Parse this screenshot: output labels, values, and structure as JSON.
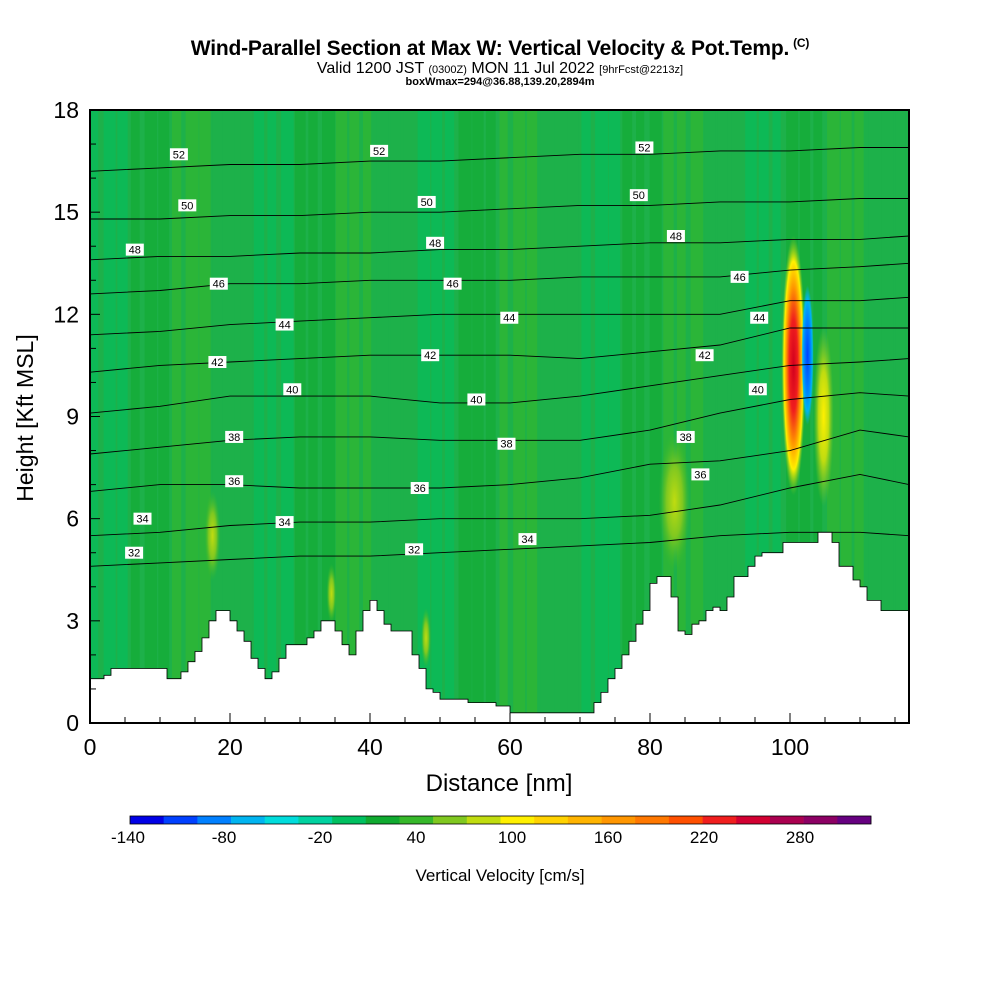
{
  "header": {
    "title": "Wind-Parallel Section at Max W: Vertical Velocity & Pot.Temp.",
    "title_mark": "(C)",
    "valid_a": "Valid 1200 JST",
    "valid_b": "(0300Z)",
    "valid_c": "MON 11 Jul 2022",
    "valid_d": "[9hrFcst@2213z]",
    "sub": "boxWmax=294@36.88,139.20,2894m"
  },
  "chart_data": {
    "type": "heatmap",
    "xlabel": "Distance [nm]",
    "ylabel": "Height [Kft MSL]",
    "xlim": [
      0,
      117
    ],
    "ylim": [
      0,
      18
    ],
    "x_ticks": [
      0,
      20,
      40,
      60,
      80,
      100
    ],
    "y_ticks": [
      0,
      3,
      6,
      9,
      12,
      15,
      18
    ],
    "colorbar": {
      "label": "Vertical Velocity [cm/s]",
      "tick_labels": [
        "-140",
        "-80",
        "-20",
        "40",
        "100",
        "160",
        "220",
        "280"
      ],
      "colors": [
        "#0000e6",
        "#0040ff",
        "#0080ff",
        "#00b4f0",
        "#00dcdc",
        "#00d2a0",
        "#00c060",
        "#10aa30",
        "#36b82a",
        "#80c820",
        "#c0dc10",
        "#fff000",
        "#ffd200",
        "#ffb400",
        "#ff9600",
        "#ff7800",
        "#ff5000",
        "#f01e1e",
        "#d20032",
        "#aa0050",
        "#8c0064",
        "#660080"
      ]
    },
    "theta_contours": [
      {
        "label": "32",
        "h": [
          4.6,
          4.7,
          4.8,
          4.9,
          4.9,
          5.0,
          5.1,
          5.2,
          5.3,
          5.5,
          5.6,
          5.6,
          5.5
        ]
      },
      {
        "label": "34",
        "h": [
          5.5,
          5.6,
          5.8,
          5.9,
          5.9,
          6.0,
          6.0,
          6.0,
          6.1,
          6.4,
          6.9,
          7.3,
          7.0
        ]
      },
      {
        "label": "36",
        "h": [
          6.8,
          7.0,
          7.0,
          6.9,
          6.9,
          6.9,
          7.0,
          7.2,
          7.6,
          7.7,
          8.0,
          8.6,
          8.4
        ]
      },
      {
        "label": "38",
        "h": [
          7.9,
          8.1,
          8.3,
          8.4,
          8.4,
          8.3,
          8.3,
          8.3,
          8.6,
          9.1,
          9.5,
          9.7,
          9.6
        ]
      },
      {
        "label": "40",
        "h": [
          9.1,
          9.3,
          9.6,
          9.6,
          9.6,
          9.4,
          9.4,
          9.6,
          9.9,
          10.2,
          10.5,
          10.6,
          10.7
        ]
      },
      {
        "label": "42",
        "h": [
          10.3,
          10.5,
          10.6,
          10.7,
          10.8,
          10.8,
          10.8,
          10.7,
          10.9,
          11.1,
          11.6,
          11.6,
          11.6
        ]
      },
      {
        "label": "44",
        "h": [
          11.4,
          11.5,
          11.7,
          11.8,
          11.9,
          12.0,
          12.0,
          12.0,
          12.0,
          12.0,
          12.4,
          12.4,
          12.5
        ]
      },
      {
        "label": "46",
        "h": [
          12.6,
          12.7,
          12.9,
          12.9,
          13.0,
          13.0,
          13.0,
          13.1,
          13.1,
          13.1,
          13.3,
          13.4,
          13.5
        ]
      },
      {
        "label": "48",
        "h": [
          13.6,
          13.7,
          13.7,
          13.8,
          13.8,
          13.9,
          13.9,
          14.0,
          14.1,
          14.1,
          14.2,
          14.2,
          14.3
        ]
      },
      {
        "label": "50",
        "h": [
          14.8,
          14.8,
          14.9,
          14.9,
          15.0,
          15.0,
          15.1,
          15.2,
          15.2,
          15.3,
          15.3,
          15.4,
          15.4
        ]
      },
      {
        "label": "52",
        "h": [
          16.2,
          16.3,
          16.4,
          16.4,
          16.5,
          16.5,
          16.6,
          16.7,
          16.7,
          16.8,
          16.8,
          16.9,
          16.9
        ]
      }
    ],
    "theta_contour_x": [
      0,
      10,
      20,
      30,
      40,
      50,
      60,
      70,
      80,
      90,
      100,
      110,
      117
    ],
    "contour_labels": [
      {
        "text": "52",
        "x": 12.7,
        "y": 16.7
      },
      {
        "text": "52",
        "x": 41.3,
        "y": 16.8
      },
      {
        "text": "52",
        "x": 79.2,
        "y": 16.9
      },
      {
        "text": "50",
        "x": 13.9,
        "y": 15.2
      },
      {
        "text": "50",
        "x": 48.1,
        "y": 15.3
      },
      {
        "text": "50",
        "x": 78.4,
        "y": 15.5
      },
      {
        "text": "48",
        "x": 6.4,
        "y": 13.9
      },
      {
        "text": "48",
        "x": 49.3,
        "y": 14.1
      },
      {
        "text": "48",
        "x": 83.7,
        "y": 14.3
      },
      {
        "text": "46",
        "x": 18.4,
        "y": 12.9
      },
      {
        "text": "46",
        "x": 51.8,
        "y": 12.9
      },
      {
        "text": "46",
        "x": 92.8,
        "y": 13.1
      },
      {
        "text": "44",
        "x": 27.8,
        "y": 11.7
      },
      {
        "text": "44",
        "x": 59.9,
        "y": 11.9
      },
      {
        "text": "44",
        "x": 95.6,
        "y": 11.9
      },
      {
        "text": "42",
        "x": 18.2,
        "y": 10.6
      },
      {
        "text": "42",
        "x": 48.6,
        "y": 10.8
      },
      {
        "text": "42",
        "x": 87.8,
        "y": 10.8
      },
      {
        "text": "40",
        "x": 28.9,
        "y": 9.8
      },
      {
        "text": "40",
        "x": 55.2,
        "y": 9.5
      },
      {
        "text": "40",
        "x": 95.4,
        "y": 9.8
      },
      {
        "text": "38",
        "x": 20.6,
        "y": 8.4
      },
      {
        "text": "38",
        "x": 59.5,
        "y": 8.2
      },
      {
        "text": "38",
        "x": 85.1,
        "y": 8.4
      },
      {
        "text": "36",
        "x": 20.6,
        "y": 7.1
      },
      {
        "text": "36",
        "x": 47.1,
        "y": 6.9
      },
      {
        "text": "36",
        "x": 87.2,
        "y": 7.3
      },
      {
        "text": "34",
        "x": 7.5,
        "y": 6.0
      },
      {
        "text": "34",
        "x": 27.8,
        "y": 5.9
      },
      {
        "text": "34",
        "x": 62.5,
        "y": 5.4
      },
      {
        "text": "32",
        "x": 6.3,
        "y": 5.0
      },
      {
        "text": "32",
        "x": 46.3,
        "y": 5.1
      }
    ],
    "terrain": {
      "x": [
        0,
        2,
        3,
        5,
        7,
        9,
        11,
        13,
        14,
        15,
        16,
        17,
        18,
        19,
        20,
        21,
        22,
        23,
        24,
        25,
        26,
        27,
        28,
        29,
        30,
        31,
        32,
        33,
        34,
        35,
        36,
        37,
        38,
        39,
        40,
        41,
        42,
        43,
        44,
        45,
        46,
        47,
        48,
        49,
        50,
        52,
        54,
        56,
        58,
        60,
        62,
        64,
        66,
        68,
        70,
        72,
        73,
        74,
        75,
        76,
        77,
        78,
        79,
        80,
        81,
        82,
        83,
        84,
        85,
        86,
        87,
        88,
        89,
        90,
        91,
        92,
        93,
        94,
        95,
        96,
        97,
        98,
        99,
        100,
        101,
        102,
        103,
        104,
        105,
        106,
        107,
        108,
        109,
        110,
        111,
        112,
        113,
        114,
        115,
        117
      ],
      "h": [
        1.3,
        1.4,
        1.6,
        1.6,
        1.6,
        1.6,
        1.3,
        1.5,
        1.8,
        2.1,
        2.5,
        3.0,
        3.3,
        3.3,
        3.0,
        2.7,
        2.4,
        1.9,
        1.6,
        1.3,
        1.5,
        1.9,
        2.3,
        2.3,
        2.3,
        2.5,
        2.7,
        3.0,
        3.0,
        2.7,
        2.3,
        2.0,
        2.7,
        3.3,
        3.6,
        3.3,
        2.9,
        2.7,
        2.7,
        2.7,
        2.0,
        1.6,
        1.0,
        0.9,
        0.7,
        0.7,
        0.6,
        0.6,
        0.5,
        0.3,
        0.3,
        0.3,
        0.3,
        0.3,
        0.3,
        0.6,
        0.9,
        1.3,
        1.6,
        2.0,
        2.4,
        2.9,
        3.3,
        4.1,
        4.3,
        4.3,
        3.7,
        2.7,
        2.6,
        2.9,
        3.0,
        3.3,
        3.4,
        3.3,
        3.7,
        4.3,
        4.3,
        4.6,
        4.9,
        5.0,
        5.0,
        5.0,
        5.3,
        5.3,
        5.3,
        5.3,
        5.3,
        5.6,
        5.6,
        5.3,
        4.6,
        4.6,
        4.2,
        4.0,
        3.6,
        3.6,
        3.3,
        3.3,
        3.3,
        3.3
      ]
    },
    "updrafts": [
      {
        "x": 100.5,
        "y": 10.5,
        "w": 159,
        "note": "core"
      },
      {
        "x": 102.5,
        "y": 10.8,
        "w": -110,
        "note": "downdraft"
      },
      {
        "x": 104.8,
        "y": 9.0,
        "w": 100
      },
      {
        "x": 83.5,
        "y": 6.5,
        "w": 60
      },
      {
        "x": 17.5,
        "y": 5.5,
        "w": 60
      },
      {
        "x": 34.5,
        "y": 3.8,
        "w": 40
      },
      {
        "x": 48.0,
        "y": 2.5,
        "w": 40
      }
    ]
  }
}
